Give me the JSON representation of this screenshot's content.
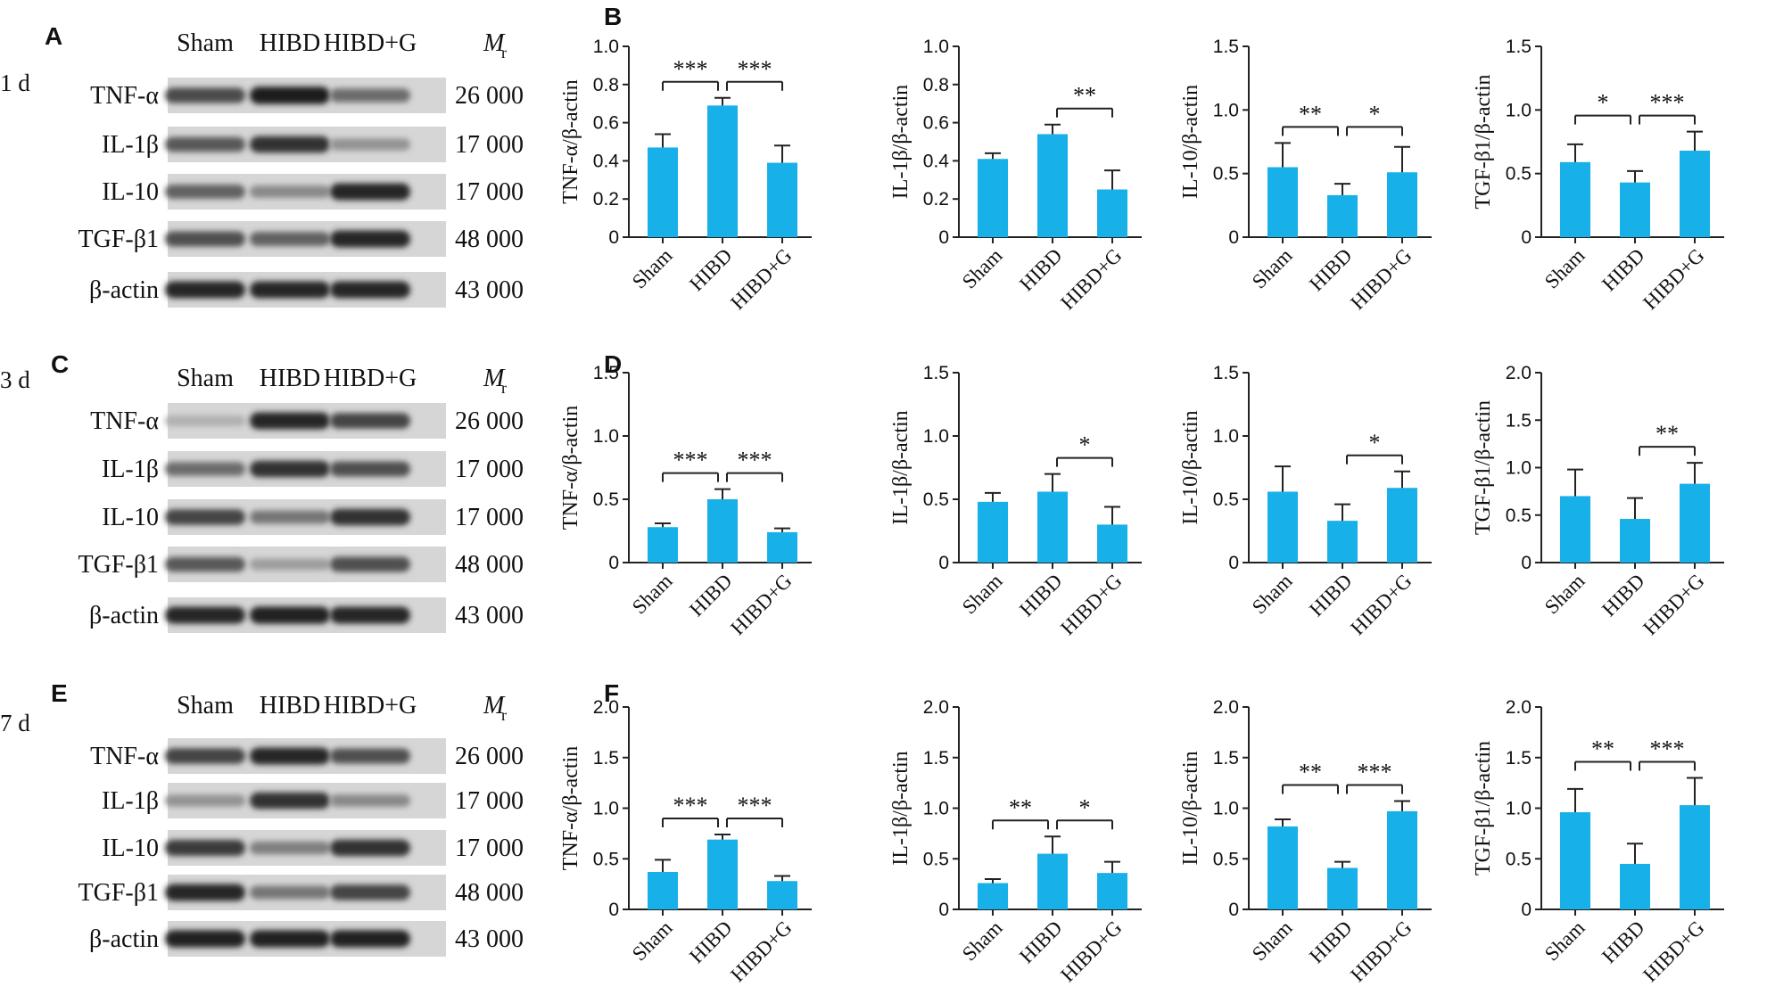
{
  "panel_letters": [
    "A",
    "B",
    "C",
    "D",
    "E",
    "F"
  ],
  "blots": [
    {
      "letter": "A",
      "day": "1 d",
      "lanes": [
        "Sham",
        "HIBD",
        "HIBD+G"
      ],
      "mr_label": "M",
      "mr_sub": "r",
      "rows": [
        {
          "protein": "TNF-α",
          "mw": "26 000",
          "intensity": [
            0.72,
            0.95,
            0.55
          ]
        },
        {
          "protein": "IL-1β",
          "mw": "17 000",
          "intensity": [
            0.65,
            0.85,
            0.35
          ]
        },
        {
          "protein": "IL-10",
          "mw": "17 000",
          "intensity": [
            0.6,
            0.4,
            0.9
          ]
        },
        {
          "protein": "TGF-β1",
          "mw": "48 000",
          "intensity": [
            0.7,
            0.6,
            0.9
          ]
        },
        {
          "protein": "β-actin",
          "mw": "43 000",
          "intensity": [
            0.9,
            0.9,
            0.9
          ]
        }
      ]
    },
    {
      "letter": "C",
      "day": "3 d",
      "lanes": [
        "Sham",
        "HIBD",
        "HIBD+G"
      ],
      "mr_label": "M",
      "mr_sub": "r",
      "rows": [
        {
          "protein": "TNF-α",
          "mw": "26 000",
          "intensity": [
            0.2,
            0.9,
            0.75
          ]
        },
        {
          "protein": "IL-1β",
          "mw": "17 000",
          "intensity": [
            0.55,
            0.85,
            0.7
          ]
        },
        {
          "protein": "IL-10",
          "mw": "17 000",
          "intensity": [
            0.75,
            0.5,
            0.85
          ]
        },
        {
          "protein": "TGF-β1",
          "mw": "48 000",
          "intensity": [
            0.65,
            0.3,
            0.7
          ]
        },
        {
          "protein": "β-actin",
          "mw": "43 000",
          "intensity": [
            0.9,
            0.92,
            0.9
          ]
        }
      ]
    },
    {
      "letter": "E",
      "day": "7 d",
      "lanes": [
        "Sham",
        "HIBD",
        "HIBD+G"
      ],
      "mr_label": "M",
      "mr_sub": "r",
      "rows": [
        {
          "protein": "TNF-α",
          "mw": "26 000",
          "intensity": [
            0.75,
            0.9,
            0.7
          ]
        },
        {
          "protein": "IL-1β",
          "mw": "17 000",
          "intensity": [
            0.35,
            0.85,
            0.4
          ]
        },
        {
          "protein": "IL-10",
          "mw": "17 000",
          "intensity": [
            0.8,
            0.45,
            0.85
          ]
        },
        {
          "protein": "TGF-β1",
          "mw": "48 000",
          "intensity": [
            0.9,
            0.5,
            0.75
          ]
        },
        {
          "protein": "β-actin",
          "mw": "43 000",
          "intensity": [
            0.92,
            0.92,
            0.92
          ]
        }
      ]
    }
  ],
  "colors": {
    "bar": "#18b0e8",
    "axis": "#222222",
    "text": "#111111"
  },
  "chart_data": [
    {
      "panel": "B",
      "type": "bar",
      "categories": [
        "Sham",
        "HIBD",
        "HIBD+G"
      ],
      "values": [
        0.47,
        0.69,
        0.39
      ],
      "errors": [
        0.07,
        0.04,
        0.09
      ],
      "ylabel": "TNF-α/β-actin",
      "ylim": [
        0,
        1.0
      ],
      "yticks": [
        "0",
        "0.2",
        "0.4",
        "0.6",
        "0.8",
        "1.0"
      ],
      "significance": [
        {
          "from": 0,
          "to": 1,
          "label": "***"
        },
        {
          "from": 1,
          "to": 2,
          "label": "***"
        }
      ]
    },
    {
      "panel": "B",
      "type": "bar",
      "categories": [
        "Sham",
        "HIBD",
        "HIBD+G"
      ],
      "values": [
        0.41,
        0.54,
        0.25
      ],
      "errors": [
        0.03,
        0.05,
        0.1
      ],
      "ylabel": "IL-1β/β-actin",
      "ylim": [
        0,
        1.0
      ],
      "yticks": [
        "0",
        "0.2",
        "0.4",
        "0.6",
        "0.8",
        "1.0"
      ],
      "significance": [
        {
          "from": 1,
          "to": 2,
          "label": "**"
        }
      ]
    },
    {
      "panel": "B",
      "type": "bar",
      "categories": [
        "Sham",
        "HIBD",
        "HIBD+G"
      ],
      "values": [
        0.55,
        0.33,
        0.51
      ],
      "errors": [
        0.19,
        0.09,
        0.2
      ],
      "ylabel": "IL-10/β-actin",
      "ylim": [
        0,
        1.5
      ],
      "yticks": [
        "0",
        "0.5",
        "1.0",
        "1.5"
      ],
      "significance": [
        {
          "from": 0,
          "to": 1,
          "label": "**"
        },
        {
          "from": 1,
          "to": 2,
          "label": "*"
        }
      ]
    },
    {
      "panel": "B",
      "type": "bar",
      "categories": [
        "Sham",
        "HIBD",
        "HIBD+G"
      ],
      "values": [
        0.59,
        0.43,
        0.68
      ],
      "errors": [
        0.14,
        0.09,
        0.15
      ],
      "ylabel": "TGF-β1/β-actin",
      "ylim": [
        0,
        1.5
      ],
      "yticks": [
        "0",
        "0.5",
        "1.0",
        "1.5"
      ],
      "significance": [
        {
          "from": 0,
          "to": 1,
          "label": "*"
        },
        {
          "from": 1,
          "to": 2,
          "label": "***"
        }
      ]
    },
    {
      "panel": "D",
      "type": "bar",
      "categories": [
        "Sham",
        "HIBD",
        "HIBD+G"
      ],
      "values": [
        0.28,
        0.5,
        0.24
      ],
      "errors": [
        0.03,
        0.08,
        0.03
      ],
      "ylabel": "TNF-α/β-actin",
      "ylim": [
        0,
        1.5
      ],
      "yticks": [
        "0",
        "0.5",
        "1.0",
        "1.5"
      ],
      "significance": [
        {
          "from": 0,
          "to": 1,
          "label": "***"
        },
        {
          "from": 1,
          "to": 2,
          "label": "***"
        }
      ]
    },
    {
      "panel": "D",
      "type": "bar",
      "categories": [
        "Sham",
        "HIBD",
        "HIBD+G"
      ],
      "values": [
        0.48,
        0.56,
        0.3
      ],
      "errors": [
        0.07,
        0.14,
        0.14
      ],
      "ylabel": "IL-1β/β-actin",
      "ylim": [
        0,
        1.5
      ],
      "yticks": [
        "0",
        "0.5",
        "1.0",
        "1.5"
      ],
      "significance": [
        {
          "from": 1,
          "to": 2,
          "label": "*"
        }
      ]
    },
    {
      "panel": "D",
      "type": "bar",
      "categories": [
        "Sham",
        "HIBD",
        "HIBD+G"
      ],
      "values": [
        0.56,
        0.33,
        0.59
      ],
      "errors": [
        0.2,
        0.13,
        0.13
      ],
      "ylabel": "IL-10/β-actin",
      "ylim": [
        0,
        1.5
      ],
      "yticks": [
        "0",
        "0.5",
        "1.0",
        "1.5"
      ],
      "significance": [
        {
          "from": 1,
          "to": 2,
          "label": "*"
        }
      ]
    },
    {
      "panel": "D",
      "type": "bar",
      "categories": [
        "Sham",
        "HIBD",
        "HIBD+G"
      ],
      "values": [
        0.7,
        0.46,
        0.83
      ],
      "errors": [
        0.28,
        0.22,
        0.22
      ],
      "ylabel": "TGF-β1/β-actin",
      "ylim": [
        0,
        2.0
      ],
      "yticks": [
        "0",
        "0.5",
        "1.0",
        "1.5",
        "2.0"
      ],
      "significance": [
        {
          "from": 1,
          "to": 2,
          "label": "**"
        }
      ]
    },
    {
      "panel": "F",
      "type": "bar",
      "categories": [
        "Sham",
        "HIBD",
        "HIBD+G"
      ],
      "values": [
        0.37,
        0.69,
        0.28
      ],
      "errors": [
        0.12,
        0.05,
        0.05
      ],
      "ylabel": "TNF-α/β-actin",
      "ylim": [
        0,
        2.0
      ],
      "yticks": [
        "0",
        "0.5",
        "1.0",
        "1.5",
        "2.0"
      ],
      "significance": [
        {
          "from": 0,
          "to": 1,
          "label": "***"
        },
        {
          "from": 1,
          "to": 2,
          "label": "***"
        }
      ]
    },
    {
      "panel": "F",
      "type": "bar",
      "categories": [
        "Sham",
        "HIBD",
        "HIBD+G"
      ],
      "values": [
        0.26,
        0.55,
        0.36
      ],
      "errors": [
        0.04,
        0.17,
        0.11
      ],
      "ylabel": "IL-1β/β-actin",
      "ylim": [
        0,
        2.0
      ],
      "yticks": [
        "0",
        "0.5",
        "1.0",
        "1.5",
        "2.0"
      ],
      "significance": [
        {
          "from": 0,
          "to": 1,
          "label": "**"
        },
        {
          "from": 1,
          "to": 2,
          "label": "*"
        }
      ]
    },
    {
      "panel": "F",
      "type": "bar",
      "categories": [
        "Sham",
        "HIBD",
        "HIBD+G"
      ],
      "values": [
        0.82,
        0.41,
        0.97
      ],
      "errors": [
        0.07,
        0.06,
        0.1
      ],
      "ylabel": "IL-10/β-actin",
      "ylim": [
        0,
        2.0
      ],
      "yticks": [
        "0",
        "0.5",
        "1.0",
        "1.5",
        "2.0"
      ],
      "significance": [
        {
          "from": 0,
          "to": 1,
          "label": "**"
        },
        {
          "from": 1,
          "to": 2,
          "label": "***"
        }
      ]
    },
    {
      "panel": "F",
      "type": "bar",
      "categories": [
        "Sham",
        "HIBD",
        "HIBD+G"
      ],
      "values": [
        0.96,
        0.45,
        1.03
      ],
      "errors": [
        0.23,
        0.2,
        0.27
      ],
      "ylabel": "TGF-β1/β-actin",
      "ylim": [
        0,
        2.0
      ],
      "yticks": [
        "0",
        "0.5",
        "1.0",
        "1.5",
        "2.0"
      ],
      "significance": [
        {
          "from": 0,
          "to": 1,
          "label": "**"
        },
        {
          "from": 1,
          "to": 2,
          "label": "***"
        }
      ]
    }
  ]
}
